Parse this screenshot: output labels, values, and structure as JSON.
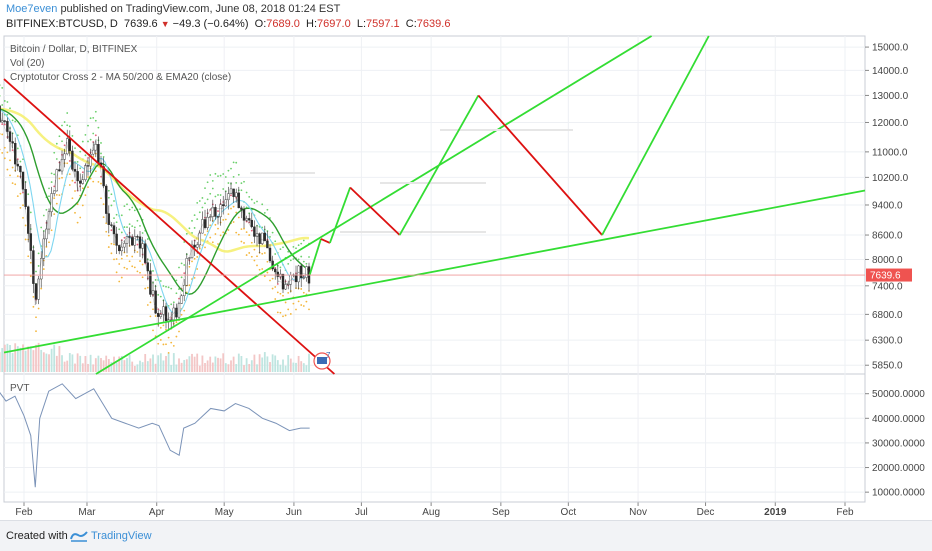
{
  "header": {
    "author": "Moe7even",
    "published": "published on TradingView.com, June 08, 2018 01:24 EST",
    "symbol": "BITFINEX:BTCUSD, D",
    "last": "7639.6",
    "change": "−49.3 (−0.64%)",
    "open_label": "O:",
    "open": "7689.0",
    "high_label": "H:",
    "high": "7697.0",
    "low_label": "L:",
    "low": "7597.1",
    "close_label": "C:",
    "close": "7639.6"
  },
  "legend": {
    "line1": "Bitcoin / Dollar, D, BITFINEX",
    "line2": "Vol (20)",
    "line3": "Cryptotutor Cross 2 - MA 50/200 & EMA20 (close)",
    "pvt": "PVT"
  },
  "price_badge": "7639.6",
  "icon_badge": "7",
  "footer": {
    "created": "Created with",
    "brand": "TradingView"
  },
  "colors": {
    "up": "#26a69a",
    "down": "#ef5350",
    "projection_up": "#33dd33",
    "projection_down": "#dd1111",
    "pvt": "#7b93b8",
    "ma200": "#f5ee6a",
    "ma50": "#2e9e2e"
  },
  "chart_data": [
    {
      "type": "line",
      "title": "Bitcoin / Dollar, D, BITFINEX",
      "y_axis_scale": "log",
      "ylim": [
        5700,
        15500
      ],
      "x_ticks": [
        "Feb",
        "Mar",
        "Apr",
        "May",
        "Jun",
        "Jul",
        "Aug",
        "Sep",
        "Oct",
        "Nov",
        "Dec",
        "2019",
        "Feb"
      ],
      "y_ticks": [
        "15000.0",
        "14000.0",
        "13000.0",
        "12000.0",
        "11000.0",
        "10200.0",
        "9400.0",
        "8600.0",
        "8000.0",
        "7400.0",
        "6800.0",
        "6300.0",
        "5850.0"
      ],
      "price_series": {
        "name": "BTCUSD",
        "x": [
          "2018-01-20",
          "2018-01-25",
          "2018-01-30",
          "2018-02-04",
          "2018-02-06",
          "2018-02-10",
          "2018-02-15",
          "2018-02-20",
          "2018-02-25",
          "2018-03-01",
          "2018-03-05",
          "2018-03-10",
          "2018-03-15",
          "2018-03-20",
          "2018-03-25",
          "2018-03-31",
          "2018-04-06",
          "2018-04-10",
          "2018-04-15",
          "2018-04-20",
          "2018-04-25",
          "2018-04-30",
          "2018-05-05",
          "2018-05-10",
          "2018-05-15",
          "2018-05-20",
          "2018-05-25",
          "2018-05-29",
          "2018-06-03",
          "2018-06-08"
        ],
        "values": [
          12500,
          11500,
          10500,
          8300,
          7000,
          8500,
          10100,
          11300,
          9800,
          10700,
          11400,
          9200,
          8300,
          8600,
          8400,
          7000,
          6700,
          6900,
          8000,
          8700,
          9300,
          9300,
          9800,
          9100,
          8600,
          8400,
          7500,
          7450,
          7700,
          7640
        ]
      },
      "projection_path": {
        "x": [
          "2018-06-08",
          "2018-06-13",
          "2018-06-17",
          "2018-06-26",
          "2018-07-18",
          "2018-08-22",
          "2018-10-16",
          "2018-12-05"
        ],
        "values": [
          7640,
          8500,
          8400,
          9900,
          8600,
          13000,
          8600,
          16000
        ]
      },
      "trend_lines": [
        {
          "name": "descending",
          "from": [
            "2018-01-20",
            13900
          ],
          "to": [
            "2018-06-19",
            5700
          ]
        },
        {
          "name": "ascending support",
          "from": [
            "2018-01-20",
            6050
          ],
          "to": [
            "2019-02-25",
            10000
          ]
        },
        {
          "name": "ascending channel",
          "from": [
            "2018-03-05",
            5700
          ],
          "to": [
            "2018-11-07",
            15500
          ]
        }
      ]
    },
    {
      "type": "line",
      "title": "PVT",
      "ylim": [
        6000,
        58000
      ],
      "y_ticks": [
        "50000.0000",
        "40000.0000",
        "30000.0000",
        "20000.0000",
        "10000.0000"
      ],
      "series": [
        {
          "name": "PVT",
          "x": [
            "2018-01-20",
            "2018-01-24",
            "2018-01-28",
            "2018-02-01",
            "2018-02-04",
            "2018-02-06",
            "2018-02-08",
            "2018-02-12",
            "2018-02-18",
            "2018-02-24",
            "2018-02-28",
            "2018-03-04",
            "2018-03-08",
            "2018-03-12",
            "2018-03-18",
            "2018-03-24",
            "2018-03-30",
            "2018-04-02",
            "2018-04-07",
            "2018-04-11",
            "2018-04-13",
            "2018-04-18",
            "2018-04-25",
            "2018-05-01",
            "2018-05-06",
            "2018-05-12",
            "2018-05-18",
            "2018-05-24",
            "2018-05-30",
            "2018-06-04",
            "2018-06-08"
          ],
          "values": [
            52000,
            47000,
            49000,
            41000,
            33000,
            12000,
            40000,
            51000,
            54000,
            48000,
            50000,
            52000,
            46000,
            40000,
            38000,
            36000,
            38000,
            37000,
            27000,
            25000,
            36000,
            38000,
            44000,
            43000,
            46000,
            44000,
            40000,
            38000,
            35000,
            36000,
            36000
          ]
        }
      ]
    }
  ]
}
